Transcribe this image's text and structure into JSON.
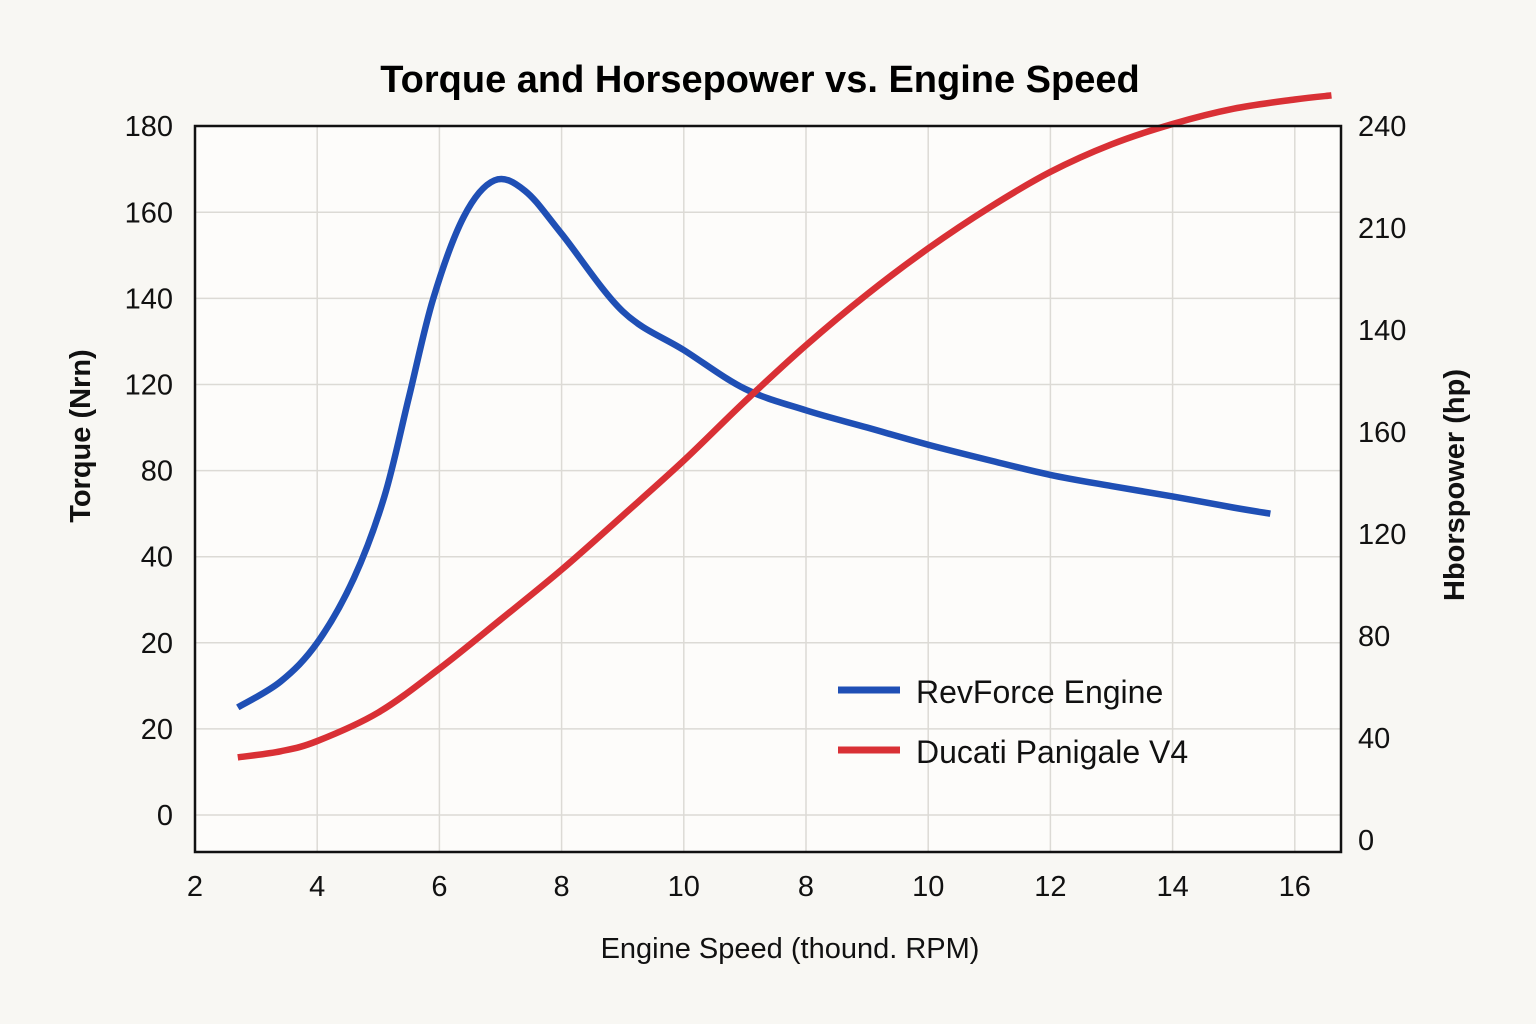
{
  "chart_data": {
    "type": "line",
    "title": "Torque and Horsepower vs. Engine Speed",
    "xlabel": "Engine Speed (thound. RPM)",
    "ylabel": "Torque (Nrn)",
    "ylabel_right": "Hborspower (hp)",
    "x_ticks": [
      "2",
      "4",
      "6",
      "8",
      "10",
      "8",
      "10",
      "12",
      "14",
      "16"
    ],
    "y_ticks_left": [
      "180",
      "160",
      "140",
      "120",
      "80",
      "40",
      "20",
      "20",
      "0"
    ],
    "y_ticks_right": [
      "240",
      "210",
      "140",
      "160",
      "120",
      "80",
      "40",
      "0"
    ],
    "grid": true,
    "legend_position": "bottom-right",
    "note": "Printed tick labels are non-monotonic; series points are given as x-tick index (0 = '2' ... 9 = '16') and y-tick index on the series' axis (left: 0 = '0' at bottom ... 8 = '180' top; right: 0 = '0' at bottom ... 7 = '240' top).",
    "series": [
      {
        "name": "RevForce Engine",
        "axis": "left",
        "color": "#1f4fb5",
        "points": [
          [
            0.35,
            1.25
          ],
          [
            0.7,
            1.55
          ],
          [
            1.0,
            2.0
          ],
          [
            1.3,
            2.75
          ],
          [
            1.55,
            3.7
          ],
          [
            1.75,
            4.85
          ],
          [
            1.95,
            6.0
          ],
          [
            2.2,
            6.95
          ],
          [
            2.45,
            7.37
          ],
          [
            2.7,
            7.25
          ],
          [
            3.0,
            6.75
          ],
          [
            3.5,
            5.85
          ],
          [
            4.0,
            5.4
          ],
          [
            4.5,
            4.95
          ],
          [
            5.0,
            4.7
          ],
          [
            5.5,
            4.5
          ],
          [
            6.0,
            4.3
          ],
          [
            6.5,
            4.12
          ],
          [
            7.0,
            3.95
          ],
          [
            7.5,
            3.82
          ],
          [
            8.0,
            3.7
          ],
          [
            8.5,
            3.57
          ],
          [
            8.8,
            3.5
          ]
        ]
      },
      {
        "name": "Ducati Panigale V4",
        "axis": "right",
        "color": "#d93035",
        "points": [
          [
            0.35,
            0.81
          ],
          [
            0.7,
            0.87
          ],
          [
            1.0,
            0.97
          ],
          [
            1.5,
            1.25
          ],
          [
            2.0,
            1.68
          ],
          [
            2.5,
            2.16
          ],
          [
            3.0,
            2.65
          ],
          [
            3.5,
            3.18
          ],
          [
            4.0,
            3.72
          ],
          [
            4.5,
            4.3
          ],
          [
            5.0,
            4.85
          ],
          [
            5.5,
            5.35
          ],
          [
            6.0,
            5.8
          ],
          [
            6.5,
            6.2
          ],
          [
            7.0,
            6.55
          ],
          [
            7.5,
            6.82
          ],
          [
            8.0,
            7.02
          ],
          [
            8.5,
            7.17
          ],
          [
            9.0,
            7.26
          ],
          [
            9.3,
            7.3
          ]
        ]
      }
    ]
  }
}
